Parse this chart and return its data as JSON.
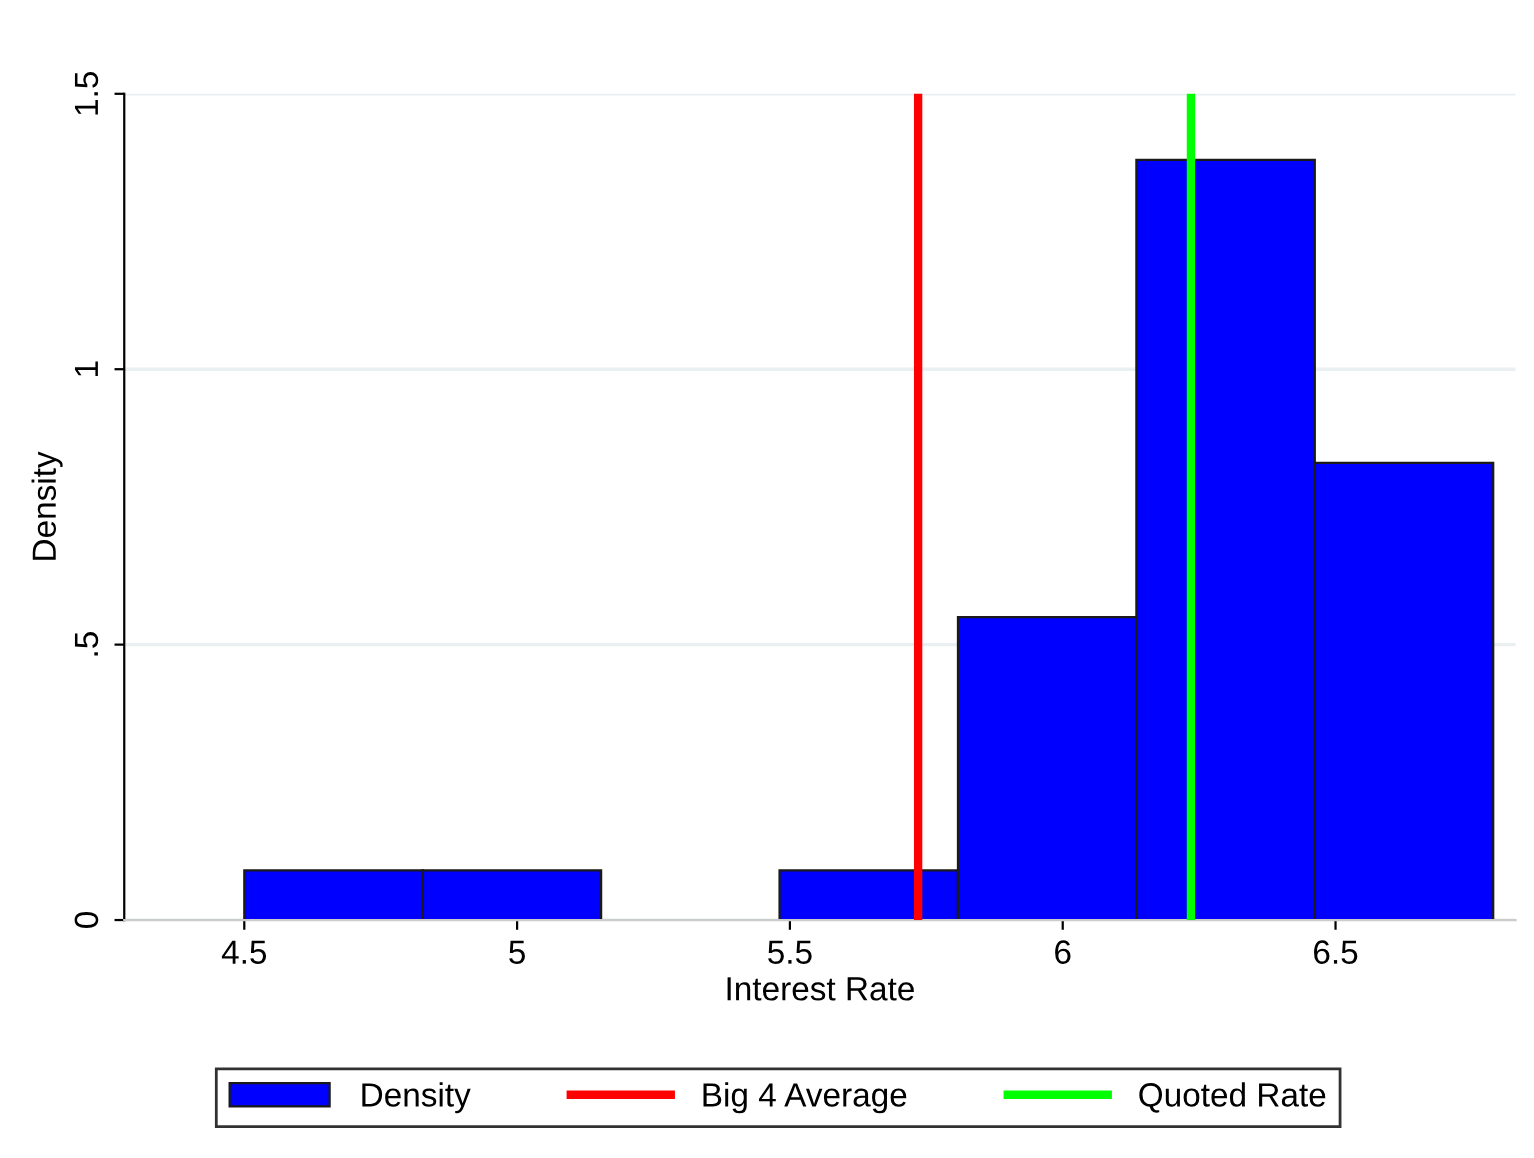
{
  "chart_data": {
    "type": "histogram",
    "xlabel": "Interest Rate",
    "ylabel": "Density",
    "bins": [
      4.5,
      4.827,
      5.154,
      5.481,
      5.808,
      6.135,
      6.462,
      6.789
    ],
    "series": [
      {
        "name": "Density",
        "color": "#0000ff",
        "values": [
          0.09,
          0.09,
          0,
          0.09,
          0.55,
          1.38,
          0.83
        ]
      }
    ],
    "xlim": [
      4.28,
      6.83
    ],
    "ylim": [
      0,
      1.5
    ],
    "xticks": [
      4.5,
      5,
      5.5,
      6,
      6.5
    ],
    "yticks": [
      0,
      {
        "value": 0.5,
        "label": ".5"
      },
      1,
      1.5
    ],
    "ref_lines": [
      {
        "axis": "x",
        "value": 5.735,
        "label": "Big 4 Average",
        "color": "#ff0000"
      },
      {
        "axis": "x",
        "value": 6.235,
        "label": "Quoted Rate",
        "color": "#00ff00"
      }
    ],
    "grid": "y",
    "legend": "bottom"
  }
}
